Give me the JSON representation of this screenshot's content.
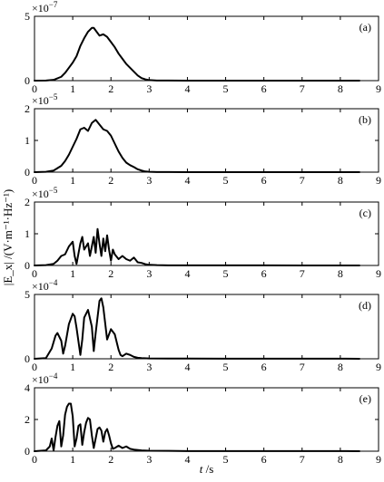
{
  "chart_data": {
    "type": "line",
    "xlabel_italic": "t",
    "xlabel_unit": " /s",
    "ylabel": "|E_x| /(V·m⁻¹·Hz⁻¹)",
    "xlim": [
      0,
      9
    ],
    "xticks": [
      "0",
      "1",
      "2",
      "3",
      "4",
      "5",
      "6",
      "7",
      "8",
      "9"
    ],
    "panels": [
      {
        "label": "(a)",
        "multiplier": "×10",
        "exponent": "−7",
        "ylim": [
          0,
          5
        ],
        "yticks": [
          "0",
          "5"
        ],
        "x": [
          0,
          0.3,
          0.5,
          0.7,
          0.8,
          0.9,
          1.0,
          1.1,
          1.2,
          1.3,
          1.4,
          1.5,
          1.55,
          1.6,
          1.7,
          1.8,
          1.9,
          2.0,
          2.1,
          2.2,
          2.3,
          2.4,
          2.5,
          2.6,
          2.7,
          2.8,
          2.9,
          3.0,
          3.2,
          3.5,
          4.0,
          5.0,
          6.0,
          7.0,
          8.0,
          8.5
        ],
        "y": [
          0,
          0.01,
          0.06,
          0.3,
          0.6,
          1.0,
          1.4,
          1.9,
          2.7,
          3.3,
          3.8,
          4.1,
          4.1,
          3.9,
          3.5,
          3.6,
          3.4,
          3.0,
          2.6,
          2.1,
          1.7,
          1.3,
          1.0,
          0.7,
          0.4,
          0.2,
          0.1,
          0.04,
          0.01,
          0.005,
          0.003,
          0.002,
          0.002,
          0.001,
          0.001,
          0
        ]
      },
      {
        "label": "(b)",
        "multiplier": "×10",
        "exponent": "−5",
        "ylim": [
          0,
          2
        ],
        "yticks": [
          "0",
          "1",
          "2"
        ],
        "x": [
          0,
          0.3,
          0.5,
          0.7,
          0.8,
          0.9,
          1.0,
          1.1,
          1.2,
          1.3,
          1.4,
          1.5,
          1.6,
          1.7,
          1.8,
          1.9,
          2.0,
          2.1,
          2.2,
          2.3,
          2.4,
          2.5,
          2.6,
          2.7,
          2.8,
          2.9,
          3.0,
          3.2,
          3.5,
          4.0,
          5.0,
          6.0,
          7.0,
          8.0,
          8.5
        ],
        "y": [
          0,
          0.01,
          0.05,
          0.2,
          0.35,
          0.55,
          0.8,
          1.05,
          1.35,
          1.4,
          1.3,
          1.55,
          1.65,
          1.5,
          1.35,
          1.3,
          1.15,
          0.9,
          0.65,
          0.45,
          0.3,
          0.22,
          0.16,
          0.09,
          0.05,
          0.02,
          0.01,
          0.004,
          0.002,
          0.001,
          0.001,
          0.001,
          0.001,
          0.001,
          0
        ]
      },
      {
        "label": "(c)",
        "multiplier": "×10",
        "exponent": "−5",
        "ylim": [
          0,
          2
        ],
        "yticks": [
          "0",
          "1",
          "2"
        ],
        "x": [
          0,
          0.3,
          0.5,
          0.6,
          0.7,
          0.8,
          0.9,
          1.0,
          1.05,
          1.1,
          1.2,
          1.25,
          1.3,
          1.4,
          1.45,
          1.5,
          1.55,
          1.6,
          1.65,
          1.7,
          1.75,
          1.8,
          1.85,
          1.9,
          1.95,
          2.0,
          2.05,
          2.1,
          2.2,
          2.3,
          2.4,
          2.5,
          2.6,
          2.7,
          2.8,
          2.9,
          3.0,
          3.2,
          3.5,
          4.0,
          5.0,
          6.0,
          7.0,
          8.0,
          8.5
        ],
        "y": [
          0,
          0.01,
          0.05,
          0.15,
          0.3,
          0.35,
          0.6,
          0.75,
          0.3,
          0.05,
          0.7,
          0.9,
          0.5,
          0.7,
          0.3,
          0.6,
          0.9,
          0.4,
          1.15,
          0.7,
          0.3,
          0.85,
          0.45,
          0.95,
          0.5,
          0.15,
          0.5,
          0.35,
          0.2,
          0.3,
          0.2,
          0.15,
          0.25,
          0.1,
          0.08,
          0.04,
          0.02,
          0.01,
          0.005,
          0.003,
          0.002,
          0.002,
          0.001,
          0.001,
          0
        ]
      },
      {
        "label": "(d)",
        "multiplier": "×10",
        "exponent": "−4",
        "ylim": [
          0,
          5
        ],
        "yticks": [
          "0",
          "5"
        ],
        "x": [
          0,
          0.3,
          0.45,
          0.55,
          0.6,
          0.7,
          0.75,
          0.8,
          0.9,
          1.0,
          1.05,
          1.1,
          1.2,
          1.25,
          1.3,
          1.4,
          1.5,
          1.55,
          1.6,
          1.7,
          1.75,
          1.8,
          1.9,
          2.0,
          2.1,
          2.2,
          2.25,
          2.3,
          2.4,
          2.5,
          2.6,
          2.7,
          2.8,
          3.0,
          3.5,
          4.0,
          5.0,
          6.0,
          7.0,
          8.0,
          8.5
        ],
        "y": [
          0,
          0.05,
          0.8,
          1.8,
          2.0,
          1.4,
          0.4,
          1.0,
          2.7,
          3.5,
          3.3,
          2.4,
          0.3,
          1.5,
          3.2,
          3.8,
          2.5,
          0.6,
          2.0,
          4.5,
          4.7,
          4.0,
          1.5,
          2.3,
          1.9,
          0.7,
          0.3,
          0.2,
          0.4,
          0.3,
          0.15,
          0.08,
          0.05,
          0.03,
          0.02,
          0.02,
          0.01,
          0.01,
          0.01,
          0.01,
          0
        ]
      },
      {
        "label": "(e)",
        "multiplier": "×10",
        "exponent": "−4",
        "ylim": [
          0,
          4
        ],
        "yticks": [
          "0",
          "2",
          "4"
        ],
        "x": [
          0,
          0.3,
          0.4,
          0.45,
          0.5,
          0.55,
          0.6,
          0.65,
          0.7,
          0.75,
          0.8,
          0.85,
          0.9,
          0.95,
          1.0,
          1.05,
          1.1,
          1.15,
          1.2,
          1.25,
          1.3,
          1.35,
          1.4,
          1.45,
          1.5,
          1.55,
          1.6,
          1.65,
          1.7,
          1.75,
          1.8,
          1.85,
          1.9,
          1.95,
          2.0,
          2.05,
          2.1,
          2.2,
          2.3,
          2.4,
          2.5,
          2.6,
          2.8,
          3.0,
          3.5,
          4.0,
          5.0,
          6.0,
          7.0,
          8.0,
          8.5
        ],
        "y": [
          0,
          0.05,
          0.3,
          0.8,
          0.05,
          0.9,
          1.6,
          1.9,
          0.3,
          1.0,
          2.3,
          2.8,
          3.0,
          3.0,
          2.2,
          0.3,
          0.8,
          1.6,
          1.7,
          0.4,
          1.2,
          1.8,
          2.1,
          2.0,
          1.0,
          0.2,
          0.8,
          1.4,
          1.5,
          1.3,
          0.6,
          1.2,
          1.4,
          1.0,
          0.5,
          0.15,
          0.2,
          0.35,
          0.2,
          0.3,
          0.15,
          0.1,
          0.05,
          0.03,
          0.02,
          0.01,
          0.01,
          0.01,
          0.01,
          0.01,
          0
        ]
      }
    ]
  }
}
